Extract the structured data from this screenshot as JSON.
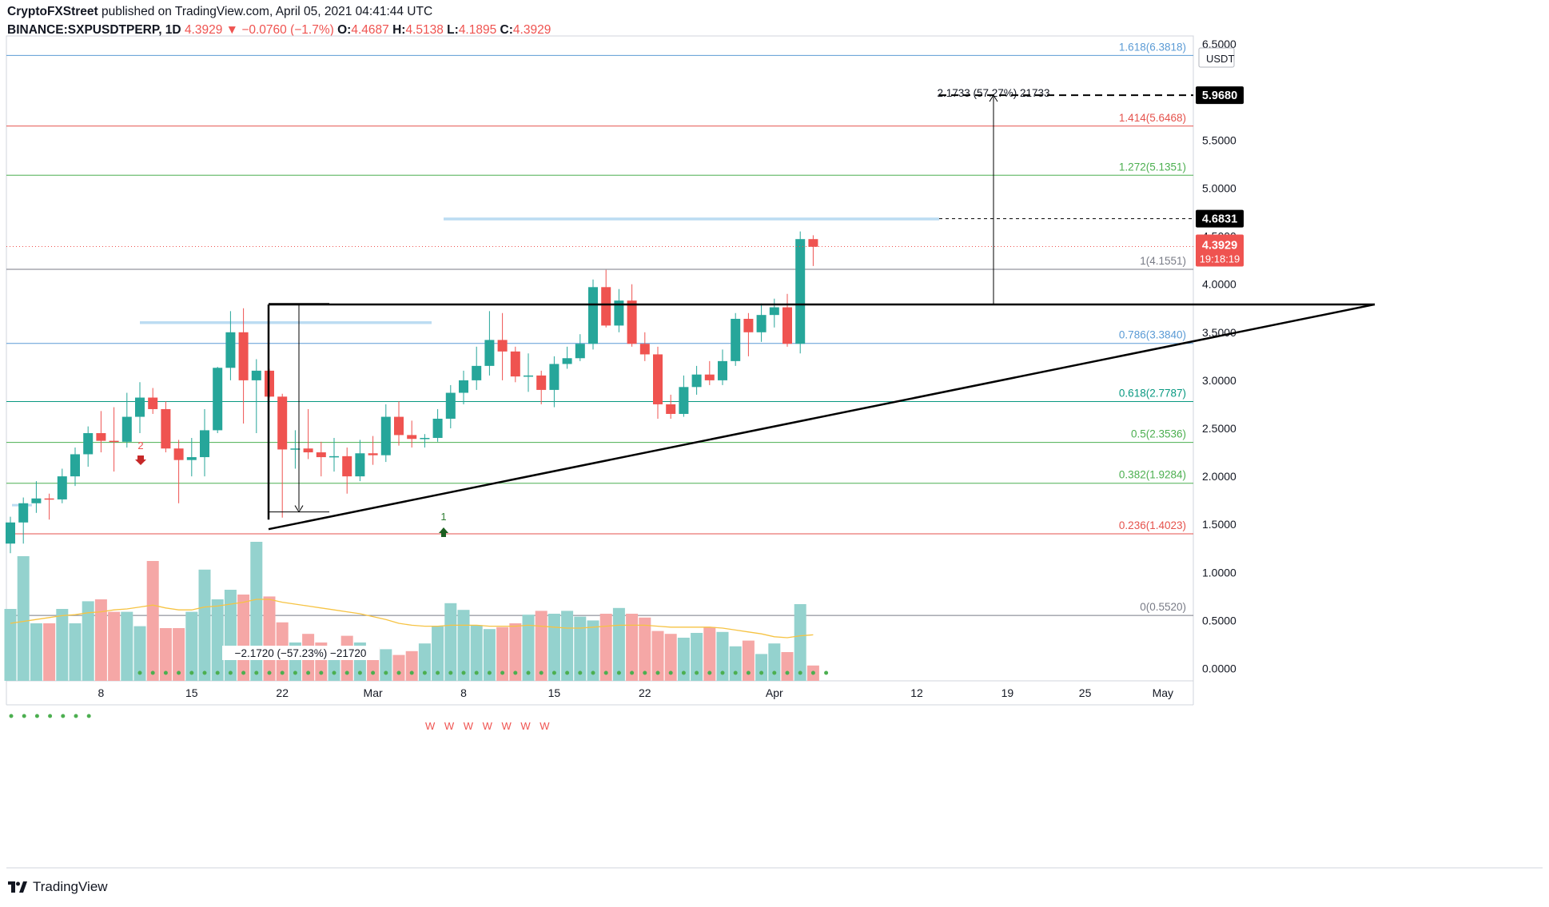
{
  "header": {
    "line1_publisher": "CryptoFXStreet",
    "line1_rest": " published on TradingView.com, April 05, 2021 04:41:44 UTC",
    "symbol": "BINANCE:SXPUSDTPERP, 1D",
    "last": "4.3929",
    "change_arrow": "▼",
    "change": "−0.0760 (−1.7%)",
    "o_label": "O:",
    "o": "4.4687",
    "h_label": "H:",
    "h": "4.5138",
    "l_label": "L:",
    "l": "4.1895",
    "c_label": "C:",
    "c": "4.3929"
  },
  "currency_label": "USDT",
  "footer": {
    "brand": "TradingView"
  },
  "colors": {
    "up": "#26a69a",
    "down": "#ef5350",
    "vol_up": "#94d2ce",
    "vol_down": "#f5a7a6",
    "fib_blue": "#5b9bd5",
    "fib_red": "#e5524c",
    "fib_green": "#4caf50",
    "fib_teal": "#089981",
    "fib_grey": "#787b86",
    "ma": "#f6c343",
    "dots": "#4caf50",
    "zone": "#bcdcf2"
  },
  "chart_data": {
    "type": "candlestick",
    "symbol": "BINANCE:SXPUSDTPERP",
    "timeframe": "1D",
    "ylim": [
      0,
      6.5
    ],
    "y_ticks": [
      "0.0000",
      "0.5000",
      "1.0000",
      "1.5000",
      "2.0000",
      "2.5000",
      "3.0000",
      "3.5000",
      "4.0000",
      "4.5000",
      "5.0000",
      "5.5000",
      "6.5000"
    ],
    "x_ticks": [
      "8",
      "15",
      "22",
      "Mar",
      "8",
      "15",
      "22",
      "Apr",
      "12",
      "19",
      "25",
      "May"
    ],
    "candles": [
      {
        "date": "2021-02-01",
        "o": 1.3,
        "h": 1.58,
        "l": 1.2,
        "c": 1.52
      },
      {
        "date": "2021-02-02",
        "o": 1.52,
        "h": 1.78,
        "l": 1.3,
        "c": 1.72
      },
      {
        "date": "2021-02-03",
        "o": 1.72,
        "h": 1.95,
        "l": 1.62,
        "c": 1.77
      },
      {
        "date": "2021-02-04",
        "o": 1.77,
        "h": 1.82,
        "l": 1.55,
        "c": 1.76
      },
      {
        "date": "2021-02-05",
        "o": 1.76,
        "h": 2.08,
        "l": 1.72,
        "c": 2.0
      },
      {
        "date": "2021-02-06",
        "o": 2.0,
        "h": 2.3,
        "l": 1.9,
        "c": 2.23
      },
      {
        "date": "2021-02-07",
        "o": 2.23,
        "h": 2.52,
        "l": 2.1,
        "c": 2.45
      },
      {
        "date": "2021-02-08",
        "o": 2.45,
        "h": 2.68,
        "l": 2.25,
        "c": 2.37
      },
      {
        "date": "2021-02-09",
        "o": 2.37,
        "h": 2.72,
        "l": 2.05,
        "c": 2.36
      },
      {
        "date": "2021-02-10",
        "o": 2.36,
        "h": 2.87,
        "l": 2.3,
        "c": 2.62
      },
      {
        "date": "2021-02-11",
        "o": 2.62,
        "h": 2.98,
        "l": 2.45,
        "c": 2.82
      },
      {
        "date": "2021-02-12",
        "o": 2.82,
        "h": 2.92,
        "l": 2.65,
        "c": 2.7
      },
      {
        "date": "2021-02-13",
        "o": 2.7,
        "h": 2.78,
        "l": 2.25,
        "c": 2.29
      },
      {
        "date": "2021-02-14",
        "o": 2.29,
        "h": 2.38,
        "l": 1.72,
        "c": 2.17
      },
      {
        "date": "2021-02-15",
        "o": 2.17,
        "h": 2.4,
        "l": 2.0,
        "c": 2.2
      },
      {
        "date": "2021-02-16",
        "o": 2.2,
        "h": 2.7,
        "l": 2.0,
        "c": 2.48
      },
      {
        "date": "2021-02-17",
        "o": 2.48,
        "h": 3.14,
        "l": 2.45,
        "c": 3.13
      },
      {
        "date": "2021-02-18",
        "o": 3.13,
        "h": 3.72,
        "l": 3.0,
        "c": 3.5
      },
      {
        "date": "2021-02-19",
        "o": 3.5,
        "h": 3.75,
        "l": 2.55,
        "c": 3.0
      },
      {
        "date": "2021-02-20",
        "o": 3.0,
        "h": 3.22,
        "l": 2.45,
        "c": 3.1
      },
      {
        "date": "2021-02-21",
        "o": 3.1,
        "h": 3.12,
        "l": 2.82,
        "c": 2.83
      },
      {
        "date": "2021-02-22",
        "o": 2.83,
        "h": 2.86,
        "l": 1.57,
        "c": 2.28
      },
      {
        "date": "2021-02-23",
        "o": 2.28,
        "h": 2.48,
        "l": 2.08,
        "c": 2.29
      },
      {
        "date": "2021-02-24",
        "o": 2.29,
        "h": 2.7,
        "l": 2.18,
        "c": 2.25
      },
      {
        "date": "2021-02-25",
        "o": 2.25,
        "h": 2.36,
        "l": 2.0,
        "c": 2.2
      },
      {
        "date": "2021-02-26",
        "o": 2.2,
        "h": 2.4,
        "l": 2.05,
        "c": 2.21
      },
      {
        "date": "2021-02-27",
        "o": 2.21,
        "h": 2.3,
        "l": 1.82,
        "c": 2.0
      },
      {
        "date": "2021-02-28",
        "o": 2.0,
        "h": 2.38,
        "l": 1.95,
        "c": 2.24
      },
      {
        "date": "2021-03-01",
        "o": 2.24,
        "h": 2.42,
        "l": 2.12,
        "c": 2.22
      },
      {
        "date": "2021-03-02",
        "o": 2.22,
        "h": 2.75,
        "l": 2.15,
        "c": 2.62
      },
      {
        "date": "2021-03-03",
        "o": 2.62,
        "h": 2.78,
        "l": 2.32,
        "c": 2.43
      },
      {
        "date": "2021-03-04",
        "o": 2.43,
        "h": 2.58,
        "l": 2.3,
        "c": 2.39
      },
      {
        "date": "2021-03-05",
        "o": 2.39,
        "h": 2.44,
        "l": 2.3,
        "c": 2.4
      },
      {
        "date": "2021-03-06",
        "o": 2.4,
        "h": 2.7,
        "l": 2.36,
        "c": 2.6
      },
      {
        "date": "2021-03-07",
        "o": 2.6,
        "h": 2.95,
        "l": 2.5,
        "c": 2.87
      },
      {
        "date": "2021-03-08",
        "o": 2.87,
        "h": 3.1,
        "l": 2.75,
        "c": 3.0
      },
      {
        "date": "2021-03-09",
        "o": 3.0,
        "h": 3.35,
        "l": 2.9,
        "c": 3.15
      },
      {
        "date": "2021-03-10",
        "o": 3.15,
        "h": 3.72,
        "l": 3.05,
        "c": 3.42
      },
      {
        "date": "2021-03-11",
        "o": 3.42,
        "h": 3.7,
        "l": 3.0,
        "c": 3.3
      },
      {
        "date": "2021-03-12",
        "o": 3.3,
        "h": 3.35,
        "l": 2.98,
        "c": 3.04
      },
      {
        "date": "2021-03-13",
        "o": 3.04,
        "h": 3.28,
        "l": 2.88,
        "c": 3.05
      },
      {
        "date": "2021-03-14",
        "o": 3.05,
        "h": 3.1,
        "l": 2.75,
        "c": 2.9
      },
      {
        "date": "2021-03-15",
        "o": 2.9,
        "h": 3.25,
        "l": 2.72,
        "c": 3.17
      },
      {
        "date": "2021-03-16",
        "o": 3.17,
        "h": 3.35,
        "l": 3.12,
        "c": 3.23
      },
      {
        "date": "2021-03-17",
        "o": 3.23,
        "h": 3.48,
        "l": 3.2,
        "c": 3.38
      },
      {
        "date": "2021-03-18",
        "o": 3.38,
        "h": 4.05,
        "l": 3.32,
        "c": 3.97
      },
      {
        "date": "2021-03-19",
        "o": 3.97,
        "h": 4.15,
        "l": 3.55,
        "c": 3.57
      },
      {
        "date": "2021-03-20",
        "o": 3.57,
        "h": 3.95,
        "l": 3.5,
        "c": 3.83
      },
      {
        "date": "2021-03-21",
        "o": 3.83,
        "h": 4.0,
        "l": 3.35,
        "c": 3.38
      },
      {
        "date": "2021-03-22",
        "o": 3.38,
        "h": 3.5,
        "l": 3.2,
        "c": 3.27
      },
      {
        "date": "2021-03-23",
        "o": 3.27,
        "h": 3.35,
        "l": 2.6,
        "c": 2.75
      },
      {
        "date": "2021-03-24",
        "o": 2.75,
        "h": 2.85,
        "l": 2.6,
        "c": 2.65
      },
      {
        "date": "2021-03-25",
        "o": 2.65,
        "h": 3.05,
        "l": 2.62,
        "c": 2.93
      },
      {
        "date": "2021-03-26",
        "o": 2.93,
        "h": 3.15,
        "l": 2.85,
        "c": 3.06
      },
      {
        "date": "2021-03-27",
        "o": 3.06,
        "h": 3.2,
        "l": 2.95,
        "c": 3.0
      },
      {
        "date": "2021-03-28",
        "o": 3.0,
        "h": 3.32,
        "l": 2.95,
        "c": 3.2
      },
      {
        "date": "2021-03-29",
        "o": 3.2,
        "h": 3.7,
        "l": 3.15,
        "c": 3.64
      },
      {
        "date": "2021-03-30",
        "o": 3.64,
        "h": 3.7,
        "l": 3.25,
        "c": 3.5
      },
      {
        "date": "2021-03-31",
        "o": 3.5,
        "h": 3.8,
        "l": 3.4,
        "c": 3.68
      },
      {
        "date": "2021-04-01",
        "o": 3.68,
        "h": 3.85,
        "l": 3.55,
        "c": 3.76
      },
      {
        "date": "2021-04-02",
        "o": 3.76,
        "h": 3.9,
        "l": 3.35,
        "c": 3.38
      },
      {
        "date": "2021-04-03",
        "o": 3.38,
        "h": 4.55,
        "l": 3.28,
        "c": 4.47
      },
      {
        "date": "2021-04-04",
        "o": 4.47,
        "h": 4.51,
        "l": 4.19,
        "c": 4.39
      }
    ],
    "volume": [
      0.75,
      1.3,
      0.6,
      0.6,
      0.75,
      0.6,
      0.83,
      0.85,
      0.72,
      0.72,
      0.57,
      1.25,
      0.55,
      0.55,
      0.72,
      1.16,
      0.85,
      0.95,
      0.9,
      1.45,
      0.88,
      0.61,
      0.4,
      0.49,
      0.4,
      0.32,
      0.47,
      0.4,
      0.35,
      0.33,
      0.27,
      0.31,
      0.39,
      0.57,
      0.81,
      0.74,
      0.58,
      0.54,
      0.56,
      0.6,
      0.69,
      0.73,
      0.7,
      0.73,
      0.67,
      0.63,
      0.7,
      0.76,
      0.7,
      0.66,
      0.52,
      0.49,
      0.45,
      0.5,
      0.56,
      0.51,
      0.36,
      0.42,
      0.28,
      0.39,
      0.3,
      0.8,
      0.16
    ],
    "volume_ma": [
      0.6,
      0.62,
      0.64,
      0.66,
      0.68,
      0.69,
      0.71,
      0.72,
      0.74,
      0.75,
      0.77,
      0.79,
      0.76,
      0.74,
      0.74,
      0.77,
      0.78,
      0.8,
      0.82,
      0.85,
      0.85,
      0.82,
      0.8,
      0.78,
      0.76,
      0.74,
      0.72,
      0.7,
      0.67,
      0.64,
      0.6,
      0.58,
      0.57,
      0.57,
      0.58,
      0.58,
      0.58,
      0.57,
      0.57,
      0.57,
      0.58,
      0.57,
      0.56,
      0.55,
      0.55,
      0.56,
      0.57,
      0.58,
      0.58,
      0.58,
      0.57,
      0.56,
      0.56,
      0.56,
      0.56,
      0.55,
      0.53,
      0.51,
      0.49,
      0.46,
      0.45,
      0.47,
      0.48
    ],
    "fib_levels": [
      {
        "ratio": "1.618",
        "price": 6.3818,
        "label": "1.618(6.3818)",
        "color": "blue"
      },
      {
        "ratio": "1.414",
        "price": 5.6468,
        "label": "1.414(5.6468)",
        "color": "red"
      },
      {
        "ratio": "1.272",
        "price": 5.1351,
        "label": "1.272(5.1351)",
        "color": "green"
      },
      {
        "ratio": "1",
        "price": 4.1551,
        "label": "1(4.1551)",
        "color": "grey"
      },
      {
        "ratio": "0.786",
        "price": 3.384,
        "label": "0.786(3.3840)",
        "color": "blue"
      },
      {
        "ratio": "0.618",
        "price": 2.7787,
        "label": "0.618(2.7787)",
        "color": "teal"
      },
      {
        "ratio": "0.5",
        "price": 2.3536,
        "label": "0.5(2.3536)",
        "color": "green"
      },
      {
        "ratio": "0.382",
        "price": 1.9284,
        "label": "0.382(1.9284)",
        "color": "green"
      },
      {
        "ratio": "0.236",
        "price": 1.4023,
        "label": "0.236(1.4023)",
        "color": "red"
      },
      {
        "ratio": "0",
        "price": 0.552,
        "label": "0(0.5520)",
        "color": "grey"
      }
    ],
    "price_labels": {
      "target": "5.9680",
      "level": "4.6831",
      "current": "4.3929",
      "countdown": "19:18:19"
    },
    "measure_up": {
      "label": "2.1733 (57.27%) 21733",
      "from": 3.79,
      "to": 5.968
    },
    "measure_down": {
      "label": "−2.1720 (−57.23%) −21720",
      "from": 3.8,
      "to": 1.63
    },
    "ascending_triangle": {
      "resistance": 3.79,
      "support_start": 1.55,
      "support_end": 3.79
    },
    "annotations": {
      "sell_marker": "2",
      "buy_marker": "1",
      "w_marks": "W W W W W W W"
    }
  }
}
